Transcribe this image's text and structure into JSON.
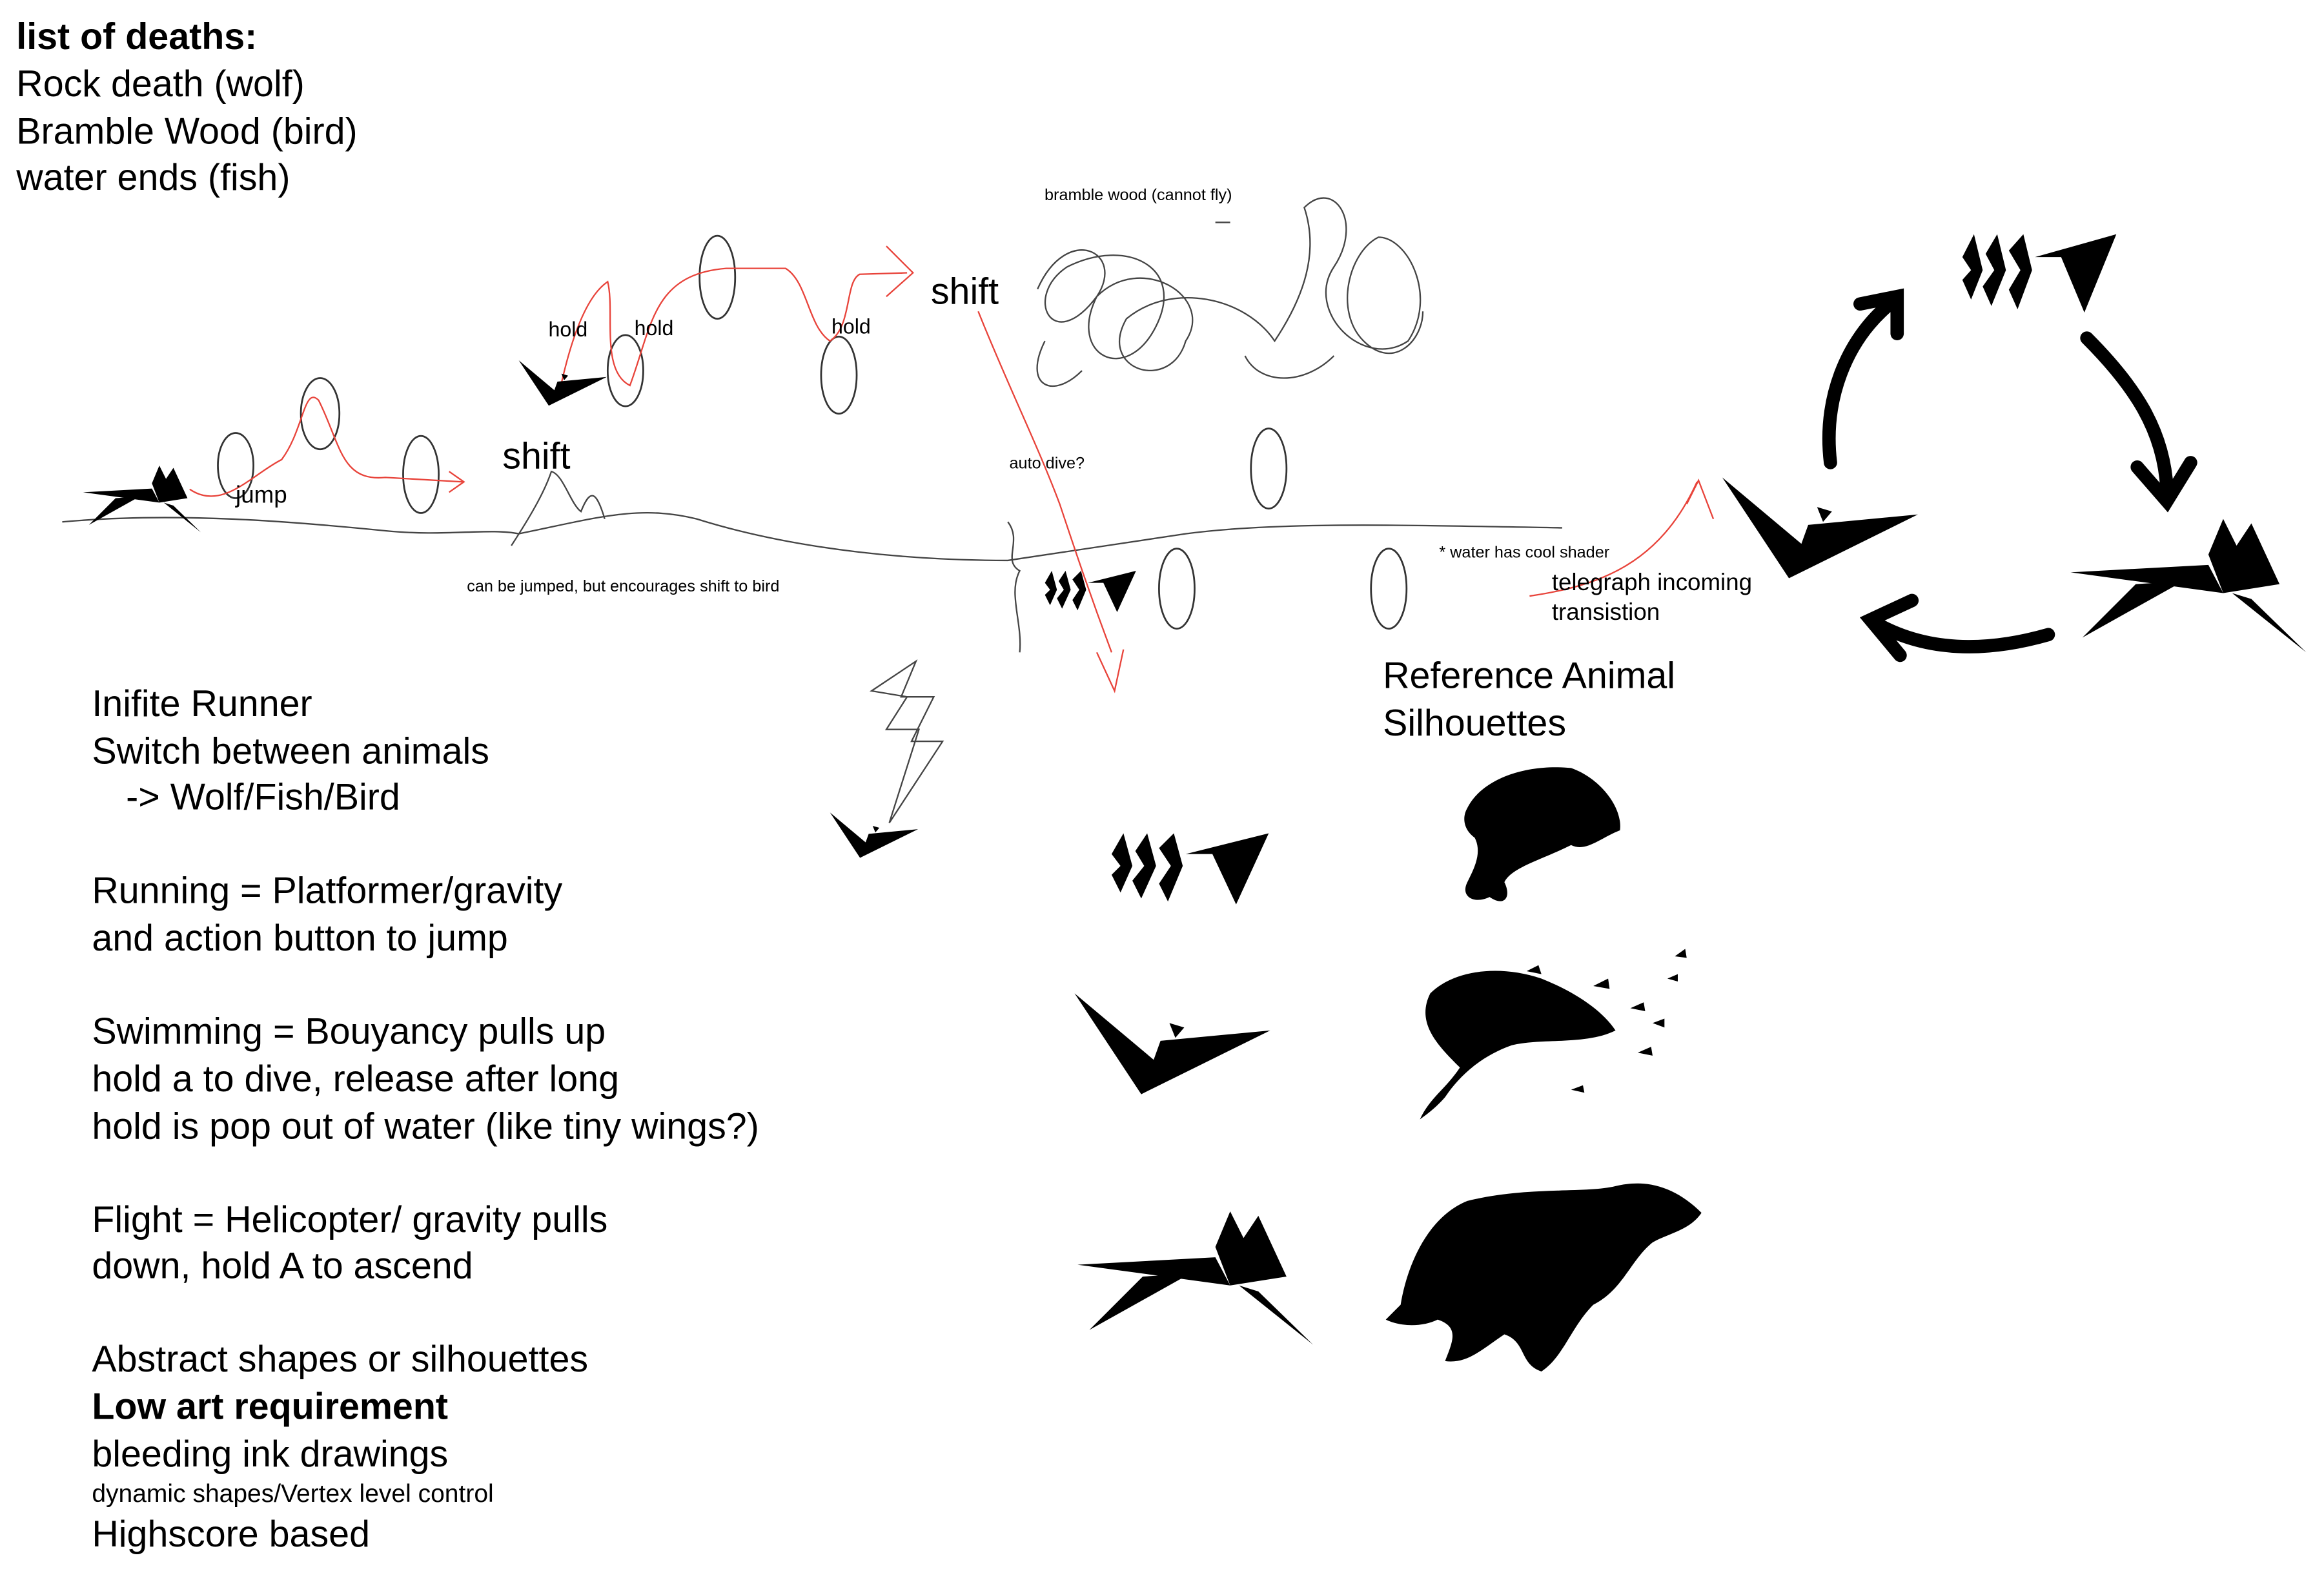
{
  "deaths": {
    "title": "list of deaths:",
    "items": [
      "Rock death (wolf)",
      "Bramble Wood (bird)",
      "water ends (fish)"
    ]
  },
  "sketch": {
    "bramble": "bramble wood (cannot fly)",
    "shift_top": "shift",
    "holds": [
      "hold",
      "hold",
      "hold"
    ],
    "shift_ground": "shift",
    "jump": "jump",
    "auto_dive": "auto dive?",
    "rock_note": "can be jumped, but encourages shift to bird",
    "water_note": "* water has cool shader",
    "telegraph": [
      "telegraph incoming",
      "transistion"
    ]
  },
  "notes": {
    "lines": [
      "Inifite Runner",
      "Switch between animals",
      "-> Wolf/Fish/Bird",
      "Running = Platformer/gravity",
      "and action button to jump",
      "Swimming = Bouyancy pulls up",
      "hold a to dive, release after long",
      "hold is pop out of water (like tiny wings?)",
      "Flight = Helicopter/ gravity pulls",
      "down, hold A to ascend",
      "Abstract shapes or silhouettes",
      "Low art requirement",
      "bleeding ink drawings",
      "dynamic shapes/Vertex level control",
      "Highscore based"
    ]
  },
  "reference": {
    "title": [
      "Reference Animal",
      "Silhouettes"
    ]
  }
}
